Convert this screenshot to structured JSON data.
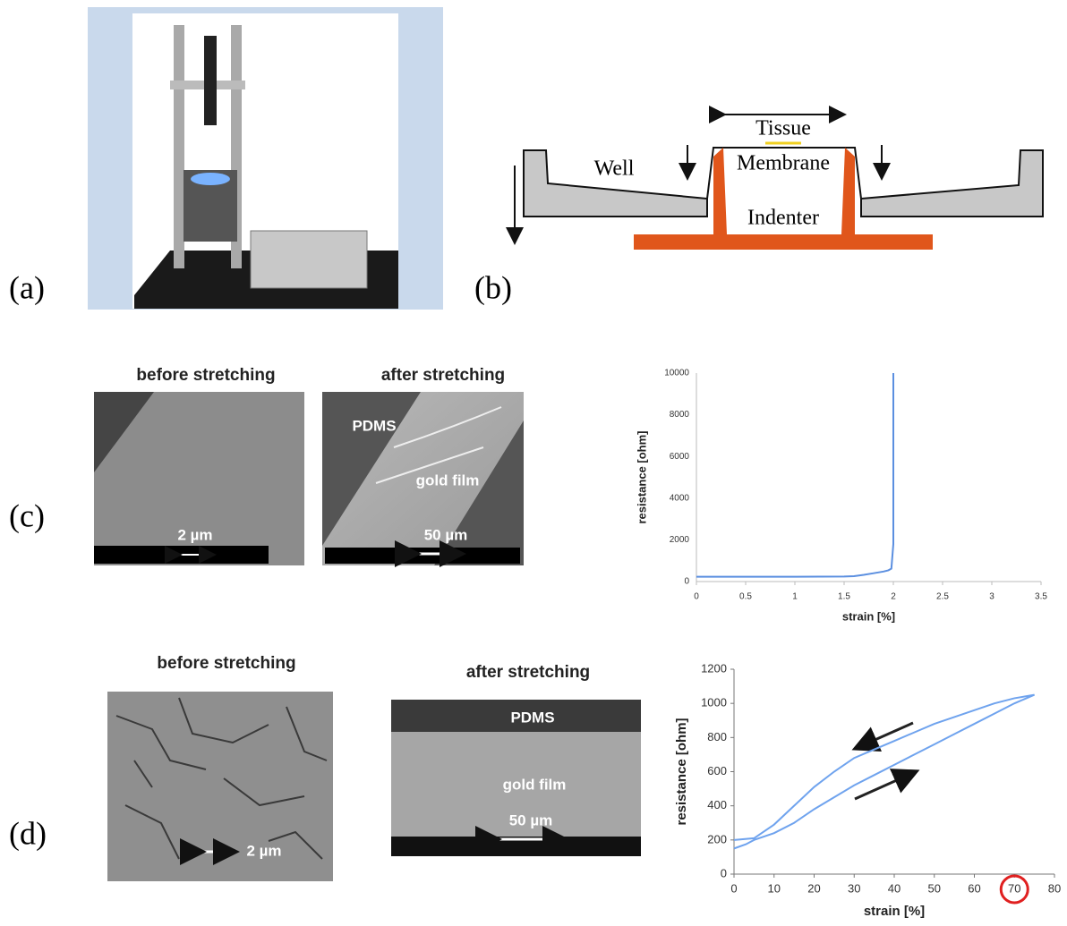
{
  "panels": {
    "a": {
      "label": "(a)"
    },
    "b": {
      "label": "(b)",
      "diagram": {
        "tissue": "Tissue",
        "well": "Well",
        "membrane": "Membrane",
        "indenter": "Indenter"
      }
    },
    "c": {
      "label": "(c)",
      "images": [
        {
          "title": "before stretching",
          "scale": "2 µm"
        },
        {
          "title": "after stretching",
          "texts": [
            "PDMS",
            "gold film"
          ],
          "scale": "50 µm"
        }
      ]
    },
    "d": {
      "label": "(d)",
      "images": [
        {
          "title": "before stretching",
          "scale": "2 µm"
        },
        {
          "title": "after stretching",
          "texts": [
            "PDMS",
            "gold film"
          ],
          "scale": "50 µm"
        }
      ]
    }
  },
  "chart_data": [
    {
      "type": "line",
      "xlabel": "strain [%]",
      "ylabel": "resistance [ohm]",
      "x": [
        0,
        0.5,
        1,
        1.5,
        1.6,
        1.7,
        1.8,
        1.9,
        1.95,
        1.98,
        2.0,
        2.0,
        2.0
      ],
      "series": [
        {
          "color": "#5b8fe0",
          "values": [
            230,
            230,
            230,
            240,
            260,
            320,
            400,
            480,
            540,
            620,
            1800,
            6000,
            10000
          ]
        }
      ],
      "xlim": [
        0,
        3.5
      ],
      "ylim": [
        0,
        10000
      ],
      "xticks": [
        0,
        0.5,
        1,
        1.5,
        2,
        2.5,
        3,
        3.5
      ],
      "yticks": [
        0,
        2000,
        4000,
        6000,
        8000,
        10000
      ]
    },
    {
      "type": "line",
      "xlabel": "strain [%]",
      "ylabel": "resistance [ohm]",
      "x": [
        0,
        3,
        5,
        10,
        15,
        20,
        25,
        30,
        35,
        40,
        45,
        50,
        55,
        60,
        65,
        70,
        75,
        70,
        65,
        60,
        55,
        50,
        45,
        40,
        35,
        30,
        25,
        20,
        15,
        10,
        5,
        0
      ],
      "series": [
        {
          "color": "#6fa3ee",
          "values": [
            150,
            175,
            200,
            240,
            300,
            380,
            450,
            520,
            580,
            640,
            700,
            760,
            820,
            880,
            940,
            1000,
            1050,
            1030,
            1000,
            960,
            920,
            880,
            830,
            780,
            730,
            680,
            600,
            510,
            400,
            290,
            210,
            200
          ]
        }
      ],
      "xlim": [
        0,
        80
      ],
      "ylim": [
        0,
        1200
      ],
      "xticks": [
        0,
        10,
        20,
        30,
        40,
        50,
        60,
        70,
        80
      ],
      "yticks": [
        0,
        200,
        400,
        600,
        800,
        1000,
        1200
      ]
    }
  ]
}
